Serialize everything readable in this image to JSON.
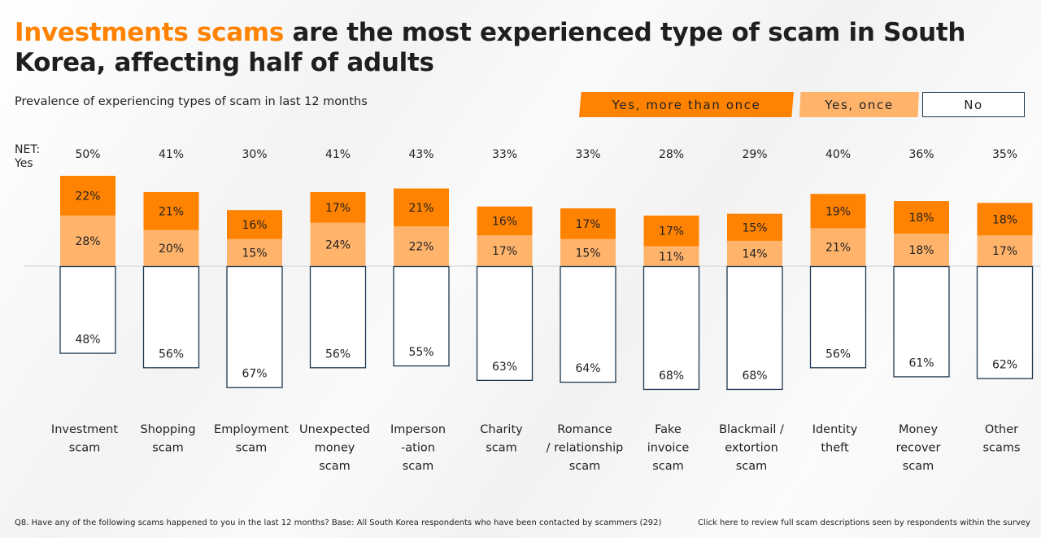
{
  "title": {
    "highlight": "Investments scams",
    "rest": " are the most experienced type of scam in South Korea, affecting half of adults"
  },
  "subtitle": "Prevalence of experiencing types of scam in last 12 months",
  "net_label": "NET:\nYes",
  "footer": {
    "question": "Q8. Have any of the following scams happened to you in the last 12 months? Base: All South Korea respondents who have been contacted by scammers (292)",
    "link": "Click here to review full scam descriptions seen by respondents within the survey"
  },
  "colors": {
    "more_than_once": "#ff8200",
    "once": "#ffb36b",
    "no_border": "#1c3850",
    "title_highlight": "#ff8200"
  },
  "chart_data": {
    "type": "bar",
    "stacked": true,
    "diverging": true,
    "title": "Investments scams are the most experienced type of scam in South Korea, affecting half of adults",
    "subtitle": "Prevalence of experiencing types of scam in last 12 months",
    "xlabel": "",
    "ylabel": "",
    "legend": [
      "Yes, more than once",
      "Yes, once",
      "No"
    ],
    "legend_position": "top-right",
    "categories": [
      "Investment scam",
      "Shopping scam",
      "Employment scam",
      "Unexpected money scam",
      "Imperson -ation scam",
      "Charity scam",
      "Romance / relationship scam",
      "Fake invoice scam",
      "Blackmail / extortion scam",
      "Identity theft",
      "Money recover scam",
      "Other scams"
    ],
    "category_lines": [
      [
        "Investment",
        "scam"
      ],
      [
        "Shopping",
        "scam"
      ],
      [
        "Employment",
        "scam"
      ],
      [
        "Unexpected",
        "money",
        "scam"
      ],
      [
        "Imperson",
        "-ation",
        "scam"
      ],
      [
        "Charity",
        "scam"
      ],
      [
        "Romance",
        "/ relationship",
        "scam"
      ],
      [
        "Fake",
        "invoice",
        "scam"
      ],
      [
        "Blackmail /",
        "extortion",
        "scam"
      ],
      [
        "Identity",
        "theft"
      ],
      [
        "Money",
        "recover",
        "scam"
      ],
      [
        "Other",
        "scams"
      ]
    ],
    "series": [
      {
        "name": "Yes, more than once",
        "values": [
          22,
          21,
          16,
          17,
          21,
          16,
          17,
          17,
          15,
          19,
          18,
          18
        ]
      },
      {
        "name": "Yes, once",
        "values": [
          28,
          20,
          15,
          24,
          22,
          17,
          15,
          11,
          14,
          21,
          18,
          17
        ]
      },
      {
        "name": "No",
        "values": [
          48,
          56,
          67,
          56,
          55,
          63,
          64,
          68,
          68,
          56,
          61,
          62
        ]
      }
    ],
    "net_yes": [
      50,
      41,
      30,
      41,
      43,
      33,
      33,
      28,
      29,
      40,
      36,
      35
    ],
    "unit": "%",
    "grid": false
  }
}
